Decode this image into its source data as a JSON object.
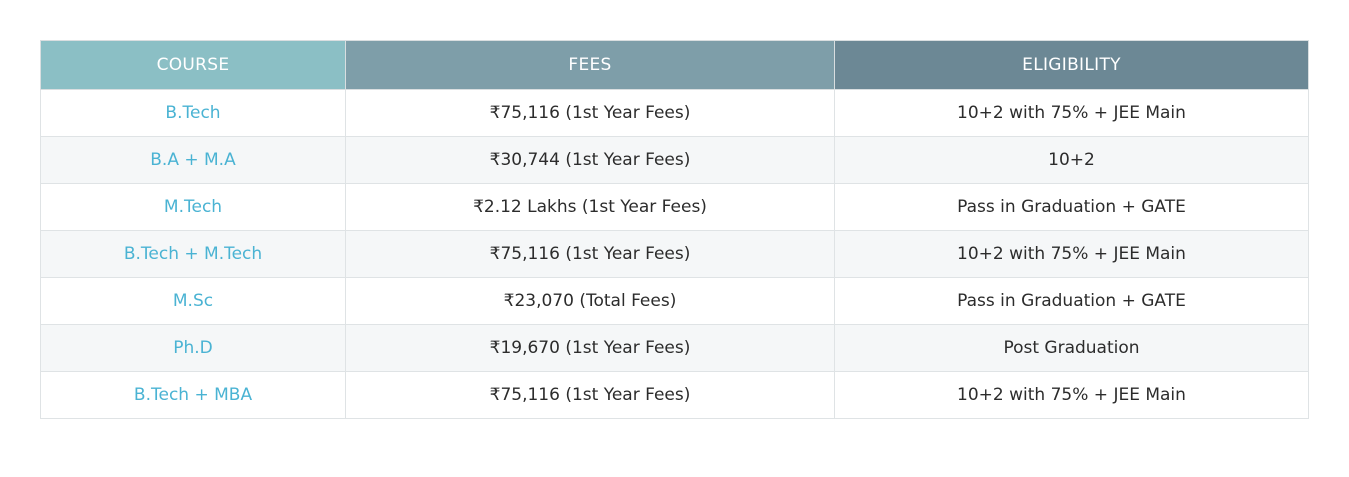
{
  "table": {
    "headers": [
      "COURSE",
      "FEES",
      "ELIGIBILITY"
    ],
    "rows": [
      {
        "course": "B.Tech",
        "fees": "₹75,116 (1st Year Fees)",
        "eligibility": "10+2 with 75% + JEE Main"
      },
      {
        "course": "B.A + M.A",
        "fees": "₹30,744 (1st Year Fees)",
        "eligibility": "10+2"
      },
      {
        "course": "M.Tech",
        "fees": "₹2.12 Lakhs (1st Year Fees)",
        "eligibility": "Pass in Graduation + GATE"
      },
      {
        "course": "B.Tech + M.Tech",
        "fees": "₹75,116 (1st Year Fees)",
        "eligibility": "10+2 with 75% + JEE Main"
      },
      {
        "course": "M.Sc",
        "fees": "₹23,070 (Total Fees)",
        "eligibility": "Pass in Graduation + GATE"
      },
      {
        "course": "Ph.D",
        "fees": "₹19,670 (1st Year Fees)",
        "eligibility": "Post Graduation"
      },
      {
        "course": "B.Tech + MBA",
        "fees": "₹75,116 (1st Year Fees)",
        "eligibility": "10+2 with 75% + JEE Main"
      }
    ]
  },
  "colors": {
    "course_header": "#8bbfc5",
    "fees_header": "#7e9ea9",
    "eligibility_header": "#6c8895",
    "course_link": "#4ab3d3"
  }
}
